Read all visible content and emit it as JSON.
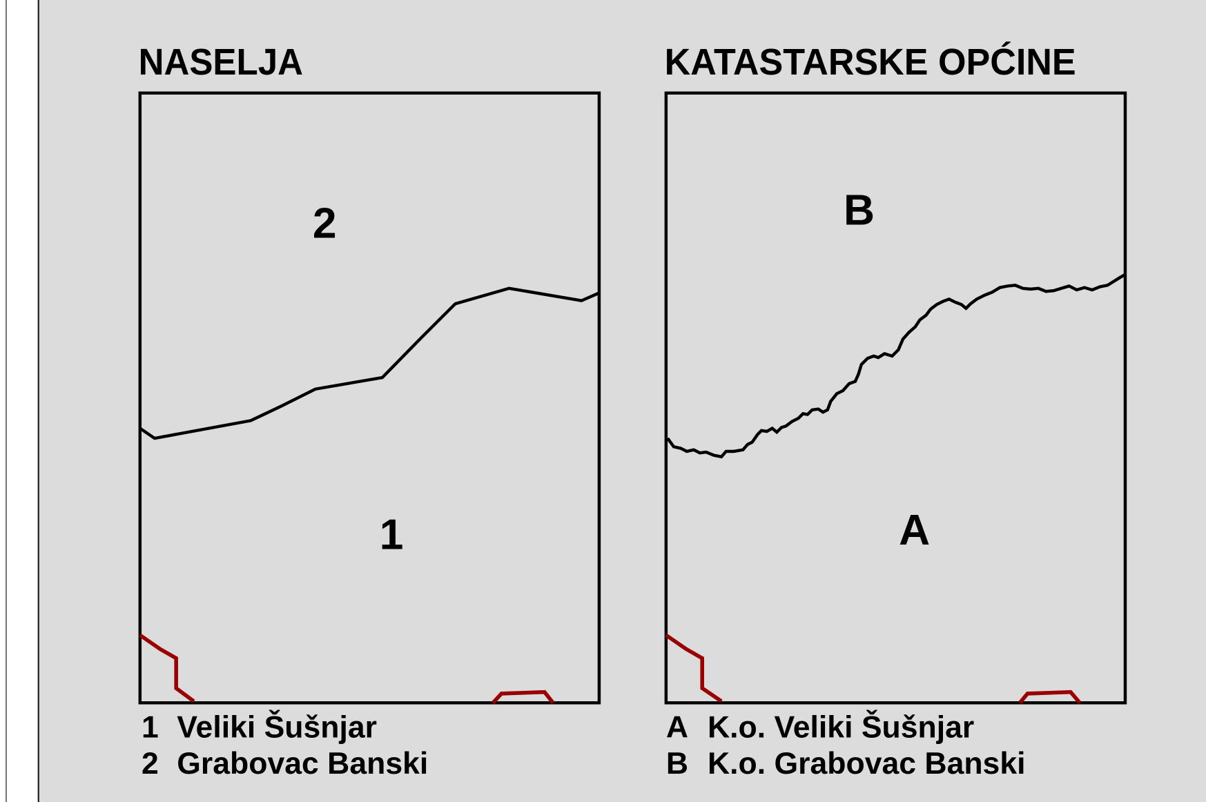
{
  "panels": [
    {
      "title": "NASELJA",
      "regions": [
        "2",
        "1"
      ],
      "legend": [
        {
          "key": "1",
          "name": "Veliki Šušnjar"
        },
        {
          "key": "2",
          "name": "Grabovac Banski"
        }
      ]
    },
    {
      "title": "KATASTARSKE OPĆINE",
      "regions": [
        "B",
        "A"
      ],
      "legend": [
        {
          "key": "A",
          "name": "K.o. Veliki Šušnjar"
        },
        {
          "key": "B",
          "name": "K.o. Grabovac Banski"
        }
      ]
    }
  ]
}
